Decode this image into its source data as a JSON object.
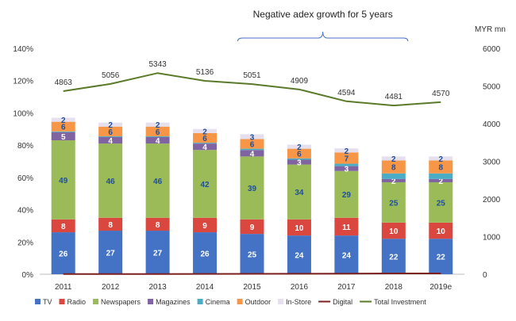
{
  "chart_data": {
    "type": "bar",
    "stacked": true,
    "categories": [
      "2011",
      "2012",
      "2013",
      "2014",
      "2015",
      "2016",
      "2017",
      "2018",
      "2019e"
    ],
    "annotation": "Negative adex growth for 5 years",
    "y_left": {
      "ticks": [
        "0%",
        "20%",
        "40%",
        "60%",
        "80%",
        "100%",
        "120%",
        "140%"
      ],
      "range": [
        0,
        140
      ]
    },
    "y_right": {
      "label": "MYR mn",
      "ticks": [
        "0",
        "1000",
        "2000",
        "3000",
        "4000",
        "5000",
        "6000"
      ],
      "range": [
        0,
        6000
      ]
    },
    "series": [
      {
        "name": "TV",
        "color": "#4472C4",
        "values": [
          26,
          27,
          27,
          26,
          25,
          24,
          24,
          22,
          22
        ],
        "labels": [
          "26",
          "27",
          "27",
          "26",
          "25",
          "24",
          "24",
          "22",
          "22"
        ],
        "label_color": "#ffffff"
      },
      {
        "name": "Radio",
        "color": "#D9473F",
        "values": [
          8,
          8,
          8,
          9,
          9,
          10,
          11,
          10,
          10
        ],
        "labels": [
          "8",
          "8",
          "8",
          "9",
          "9",
          "10",
          "11",
          "10",
          "10"
        ],
        "label_color": "#ffffff"
      },
      {
        "name": "Newspapers",
        "color": "#9BBB59",
        "values": [
          49,
          46,
          46,
          42,
          39,
          34,
          29,
          25,
          25
        ],
        "labels": [
          "49",
          "46",
          "46",
          "42",
          "39",
          "34",
          "29",
          "25",
          "25"
        ],
        "label_color": "#1F4E9A"
      },
      {
        "name": "Magazines",
        "color": "#8064A2",
        "values": [
          5,
          4,
          4,
          4,
          4,
          3,
          3,
          2,
          2
        ],
        "labels": [
          "5",
          "4",
          "4",
          "4",
          "4",
          "3",
          "3",
          "2",
          "2"
        ],
        "label_color": "#ffffff"
      },
      {
        "name": "Cinema",
        "color": "#4BACC6",
        "values": [
          0.5,
          0.5,
          0.5,
          0.5,
          0.8,
          0.8,
          1.5,
          3.5,
          3.5
        ],
        "labels": [
          "",
          "",
          "",
          "",
          "",
          "",
          "",
          "",
          ""
        ],
        "label_color": "#1F4E9A"
      },
      {
        "name": "Outdoor",
        "color": "#F79646",
        "values": [
          6,
          6,
          6,
          6,
          6,
          6,
          7,
          8,
          8
        ],
        "labels": [
          "6",
          "6",
          "6",
          "6",
          "6",
          "6",
          "7",
          "8",
          "8"
        ],
        "label_color": "#1F4E9A"
      },
      {
        "name": "In-Store",
        "color": "#E6E0EE",
        "values": [
          2.5,
          2.5,
          2.5,
          2.5,
          3,
          2.5,
          2.5,
          2.5,
          2.5
        ],
        "labels": [
          "2",
          "2",
          "2",
          "2",
          "3",
          "2",
          "2",
          "2",
          "2"
        ],
        "label_color": "#1F4E9A"
      }
    ],
    "digital": {
      "name": "Digital",
      "color": "#7B1F1F",
      "values": [
        0.2,
        0.2,
        0.2,
        0.3,
        0.4,
        0.5,
        0.6,
        0.8,
        0.8
      ]
    },
    "total_investment": {
      "name": "Total Investment",
      "color": "#5A7A2A",
      "values": [
        4863,
        5056,
        5343,
        5136,
        5051,
        4909,
        4594,
        4481,
        4570
      ],
      "labels": [
        "4863",
        "5056",
        "5343",
        "5136",
        "5051",
        "4909",
        "4594",
        "4481",
        "4570"
      ]
    },
    "legend": {
      "placement": "bottom",
      "items": [
        {
          "name": "TV",
          "color": "#4472C4",
          "kind": "box"
        },
        {
          "name": "Radio",
          "color": "#D9473F",
          "kind": "box"
        },
        {
          "name": "Newspapers",
          "color": "#9BBB59",
          "kind": "box"
        },
        {
          "name": "Magazines",
          "color": "#8064A2",
          "kind": "box"
        },
        {
          "name": "Cinema",
          "color": "#4BACC6",
          "kind": "box"
        },
        {
          "name": "Outdoor",
          "color": "#F79646",
          "kind": "box"
        },
        {
          "name": "In-Store",
          "color": "#E6E0EE",
          "kind": "box"
        },
        {
          "name": "Digital",
          "color": "#7B1F1F",
          "kind": "line"
        },
        {
          "name": "Total Investment",
          "color": "#5A7A2A",
          "kind": "line"
        }
      ]
    }
  }
}
